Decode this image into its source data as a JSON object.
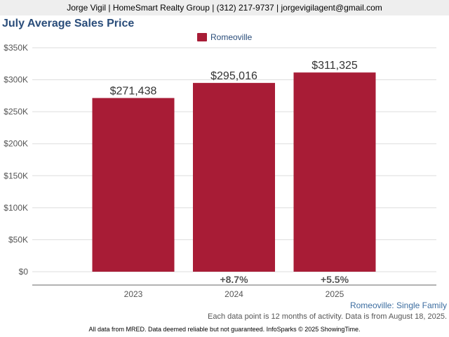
{
  "header": {
    "agent_line": "Jorge Vigil | HomeSmart Realty Group | (312) 217-9737 | jorgevigilagent@gmail.com"
  },
  "colors": {
    "bar": "#a81c36",
    "title": "#2a4d7a",
    "grid": "#dddddd",
    "axis_text": "#555555",
    "data_label": "#333333",
    "header_bg": "#eeeeee"
  },
  "chart_data": {
    "type": "bar",
    "title": "July Average Sales Price",
    "categories": [
      "2023",
      "2024",
      "2025"
    ],
    "series": [
      {
        "name": "Romeoville",
        "values": [
          271438,
          295016,
          311325
        ]
      }
    ],
    "data_labels": [
      "$271,438",
      "$295,016",
      "$311,325"
    ],
    "change_labels": [
      "",
      "+8.7%",
      "+5.5%"
    ],
    "y_ticks": [
      "$0",
      "$50K",
      "$100K",
      "$150K",
      "$200K",
      "$250K",
      "$300K",
      "$350K"
    ],
    "y_tick_values": [
      0,
      50000,
      100000,
      150000,
      200000,
      250000,
      300000,
      350000
    ],
    "ylim": [
      0,
      350000
    ],
    "grid": true,
    "legend_position": "top-center",
    "xlabel": "",
    "ylabel": ""
  },
  "footer": {
    "subtitle": "Romeoville: Single Family",
    "note": "Each data point is 12 months of activity. Data is from August 18, 2025.",
    "disclaimer": "All data from MRED. Data deemed reliable but not guaranteed. InfoSparks © 2025 ShowingTime."
  }
}
